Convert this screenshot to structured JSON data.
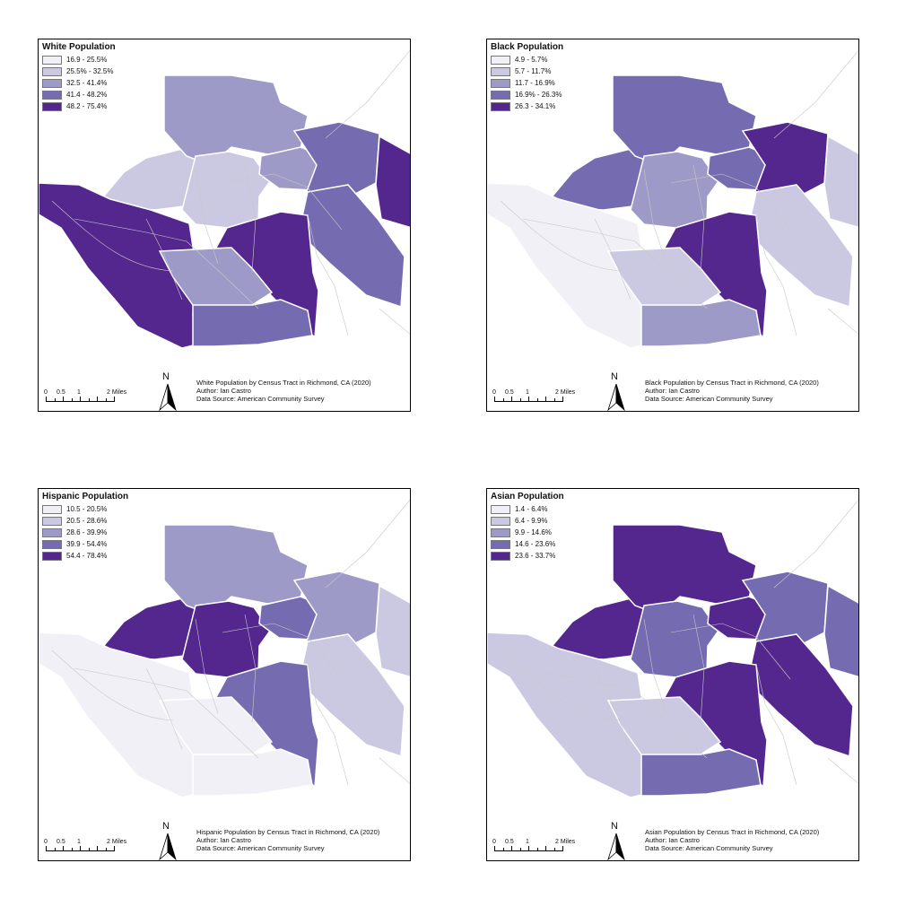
{
  "panels": [
    {
      "key": "white",
      "legend": {
        "title": "White Population",
        "classes": [
          "16.9 - 25.5%",
          "25.5% - 32.5%",
          "32.5 - 41.4%",
          "41.4 - 48.2%",
          "48.2 - 75.4%"
        ]
      },
      "caption": {
        "title": "White Population by Census Tract in Richmond, CA (2020)",
        "author": "Author: Ian Castro",
        "source": "Data Source: American Community Survey"
      },
      "tract_classes": {
        "nw": 1,
        "north": 2,
        "west": 4,
        "center": 1,
        "central_e": 4,
        "south_center": 2,
        "south_large": 3,
        "east": 3,
        "far_east": 4,
        "ne_mid": 3,
        "ne_small": 2
      }
    },
    {
      "key": "black",
      "legend": {
        "title": "Black Population",
        "classes": [
          "4.9 - 5.7%",
          "5.7 - 11.7%",
          "11.7 - 16.9%",
          "16.9% - 26.3%",
          "26.3 - 34.1%"
        ]
      },
      "caption": {
        "title": "Black Population by Census Tract in Richmond, CA (2020)",
        "author": "Author: Ian Castro",
        "source": "Data Source: American Community Survey"
      },
      "tract_classes": {
        "nw": 3,
        "north": 3,
        "west": 0,
        "center": 2,
        "central_e": 4,
        "south_center": 1,
        "south_large": 2,
        "east": 1,
        "far_east": 1,
        "ne_mid": 4,
        "ne_small": 3
      }
    },
    {
      "key": "hispanic",
      "legend": {
        "title": "Hispanic Population",
        "classes": [
          "10.5 - 20.5%",
          "20.5 - 28.6%",
          "28.6 - 39.9%",
          "39.9 - 54.4%",
          "54.4 - 78.4%"
        ]
      },
      "caption": {
        "title": "Hispanic Population by Census Tract in Richmond, CA (2020)",
        "author": "Author: Ian Castro",
        "source": "Data Source: American Community Survey"
      },
      "tract_classes": {
        "nw": 4,
        "north": 2,
        "west": 0,
        "center": 4,
        "central_e": 3,
        "south_center": 0,
        "south_large": 0,
        "east": 1,
        "far_east": 1,
        "ne_mid": 2,
        "ne_small": 3
      }
    },
    {
      "key": "asian",
      "legend": {
        "title": "Asian Population",
        "classes": [
          "1.4 - 6.4%",
          "6.4 - 9.9%",
          "9.9 - 14.6%",
          "14.6 - 23.6%",
          "23.6 - 33.7%"
        ]
      },
      "caption": {
        "title": "Asian Population by Census Tract in Richmond, CA (2020)",
        "author": "Author: Ian Castro",
        "source": "Data Source: American Community Survey"
      },
      "tract_classes": {
        "nw": 4,
        "north": 4,
        "west": 1,
        "center": 3,
        "central_e": 4,
        "south_center": 1,
        "south_large": 3,
        "east": 4,
        "far_east": 3,
        "ne_mid": 3,
        "ne_small": 4
      }
    }
  ],
  "palette": [
    "#f2f0f7",
    "#cbc9e2",
    "#9e9ac8",
    "#756bb1",
    "#54278f"
  ],
  "scale_labels": [
    "0",
    "0.5",
    "1",
    "2 Miles"
  ],
  "north_label": "N"
}
